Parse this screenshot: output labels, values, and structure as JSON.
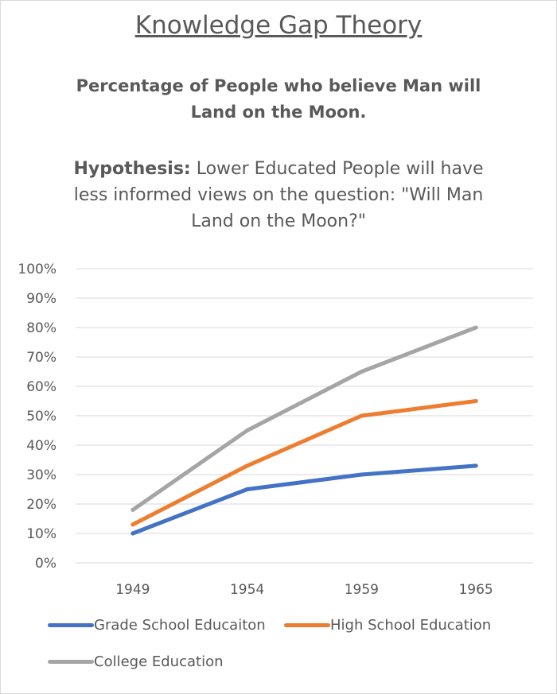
{
  "header": {
    "title": "Knowledge Gap Theory",
    "subtitle_line1": "Percentage of People who believe Man will",
    "subtitle_line2": "Land on the Moon.",
    "hypothesis_label": "Hypothesis:",
    "hypothesis_text_line1": " Lower Educated People will have",
    "hypothesis_text_line2": "less informed views on the question: \"Will Man",
    "hypothesis_text_line3": "Land on the Moon?\""
  },
  "chart_data": {
    "type": "line",
    "title": "Percentage of People who believe Man will Land on the Moon.",
    "categories": [
      "1949",
      "1954",
      "1959",
      "1965"
    ],
    "y_ticks": [
      "0%",
      "10%",
      "20%",
      "30%",
      "40%",
      "50%",
      "60%",
      "70%",
      "80%",
      "90%",
      "100%"
    ],
    "ylim": [
      0,
      100
    ],
    "grid": true,
    "legend_position": "bottom",
    "series": [
      {
        "name": "Grade School Educaiton",
        "color": "#4472c4",
        "values": [
          10,
          25,
          30,
          33
        ]
      },
      {
        "name": "High School Education",
        "color": "#ed7d31",
        "values": [
          13,
          33,
          50,
          55
        ]
      },
      {
        "name": "College Education",
        "color": "#a5a5a5",
        "values": [
          18,
          45,
          65,
          80
        ]
      }
    ]
  }
}
